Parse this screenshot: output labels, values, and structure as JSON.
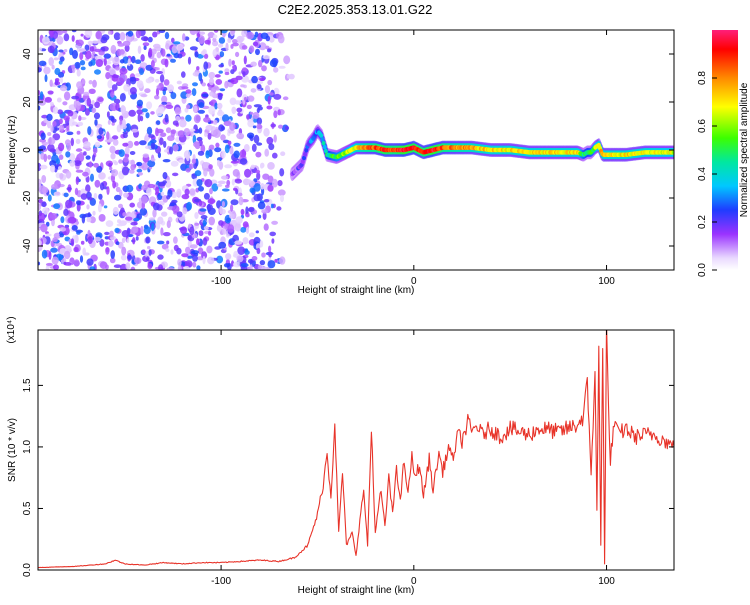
{
  "title": "C2E2.2025.353.13.01.G22",
  "chart_data": [
    {
      "type": "heatmap",
      "xlabel": "Height of straight line (km)",
      "ylabel": "Frequency (Hz)",
      "xlim": [
        -195,
        135
      ],
      "ylim": [
        -50,
        50
      ],
      "x_ticks": [
        -100,
        0,
        100
      ],
      "x_tick_labels": [
        "-100",
        "0",
        "100"
      ],
      "y_ticks": [
        -40,
        -20,
        0,
        20,
        40
      ],
      "y_tick_labels": [
        "-40",
        "-20",
        "0",
        "20",
        "40"
      ],
      "colorbar": {
        "label": "Normalized spectral amplitude",
        "range": [
          0.0,
          1.0
        ],
        "ticks": [
          0.0,
          0.2,
          0.4,
          0.6,
          0.8
        ],
        "tick_labels": [
          "0.0",
          "0.2",
          "0.4",
          "0.6",
          "0.8"
        ]
      },
      "noise_region": {
        "x_range": [
          -195,
          -62
        ],
        "freq_range": [
          -50,
          50
        ],
        "amplitude": [
          0.05,
          0.3
        ]
      },
      "signal_track": {
        "x": [
          -63,
          -58,
          -55,
          -52,
          -50,
          -48,
          -45,
          -40,
          -35,
          -30,
          -25,
          -20,
          -15,
          -10,
          -5,
          0,
          5,
          10,
          15,
          20,
          30,
          40,
          50,
          60,
          70,
          80,
          85,
          88,
          90,
          92,
          94,
          96,
          98,
          100,
          110,
          120,
          135
        ],
        "freq": [
          -10,
          -6,
          2,
          5,
          8,
          6,
          -2,
          -3,
          -1,
          1,
          1,
          1,
          0,
          0,
          0,
          1,
          -1,
          0,
          1,
          1,
          1,
          0,
          0,
          -1,
          -1,
          -1,
          -1,
          -2,
          -1,
          -1,
          1,
          2,
          -2,
          -2,
          -2,
          -1,
          -1
        ],
        "amplitude": [
          0.15,
          0.2,
          0.25,
          0.3,
          0.3,
          0.35,
          0.45,
          0.55,
          0.6,
          0.7,
          0.8,
          0.85,
          0.9,
          0.85,
          0.95,
          0.9,
          0.85,
          0.95,
          0.85,
          0.8,
          0.75,
          0.7,
          0.7,
          0.7,
          0.7,
          0.7,
          0.7,
          0.5,
          0.45,
          0.5,
          0.6,
          0.7,
          0.75,
          0.7,
          0.7,
          0.7,
          0.65
        ]
      }
    },
    {
      "type": "line",
      "xlabel": "Height of straight line (km)",
      "ylabel": "SNR (10 * v/v)",
      "y_multiplier": "(x10⁴)",
      "xlim": [
        -195,
        135
      ],
      "ylim": [
        0,
        1.95
      ],
      "x_ticks": [
        -100,
        0,
        100
      ],
      "x_tick_labels": [
        "-100",
        "0",
        "100"
      ],
      "y_ticks": [
        0,
        0.5,
        1.0,
        1.5
      ],
      "y_tick_labels": [
        "0.0",
        "0.5",
        "1.0",
        "1.5"
      ],
      "series": [
        {
          "color": "#e8342a",
          "x": [
            -195,
            -175,
            -160,
            -155,
            -150,
            -140,
            -130,
            -120,
            -110,
            -100,
            -90,
            -80,
            -70,
            -62,
            -55,
            -50,
            -47,
            -45,
            -43,
            -41,
            -39,
            -37,
            -35,
            -32,
            -30,
            -28,
            -26,
            -24,
            -22,
            -20,
            -17,
            -15,
            -13,
            -11,
            -9,
            -7,
            -5,
            -3,
            -1,
            0,
            3,
            5,
            8,
            10,
            13,
            15,
            18,
            20,
            23,
            25,
            28,
            30,
            33,
            35,
            40,
            45,
            50,
            55,
            60,
            65,
            70,
            75,
            80,
            85,
            88,
            90,
            92,
            94,
            95,
            96,
            97,
            98,
            99,
            100,
            101,
            102,
            104,
            106,
            110,
            115,
            120,
            125,
            130,
            135
          ],
          "y": [
            0.02,
            0.03,
            0.05,
            0.08,
            0.05,
            0.04,
            0.06,
            0.05,
            0.06,
            0.06,
            0.07,
            0.08,
            0.07,
            0.1,
            0.2,
            0.45,
            0.7,
            0.95,
            0.6,
            1.2,
            0.3,
            0.8,
            0.2,
            0.3,
            0.12,
            0.4,
            0.65,
            0.2,
            1.15,
            0.3,
            0.65,
            0.35,
            0.75,
            0.45,
            0.85,
            0.55,
            0.9,
            0.6,
            0.95,
            0.75,
            0.85,
            0.6,
            0.9,
            0.65,
            0.95,
            0.8,
            1.0,
            0.9,
            1.1,
            1.05,
            1.2,
            1.12,
            1.18,
            1.1,
            1.15,
            1.08,
            1.15,
            1.12,
            1.1,
            1.15,
            1.14,
            1.12,
            1.15,
            1.18,
            1.25,
            1.5,
            0.8,
            1.6,
            0.5,
            1.75,
            0.2,
            1.9,
            0.05,
            1.95,
            1.3,
            0.9,
            1.2,
            1.1,
            1.15,
            1.08,
            1.1,
            1.1,
            1.05,
            1.0
          ]
        }
      ]
    }
  ]
}
